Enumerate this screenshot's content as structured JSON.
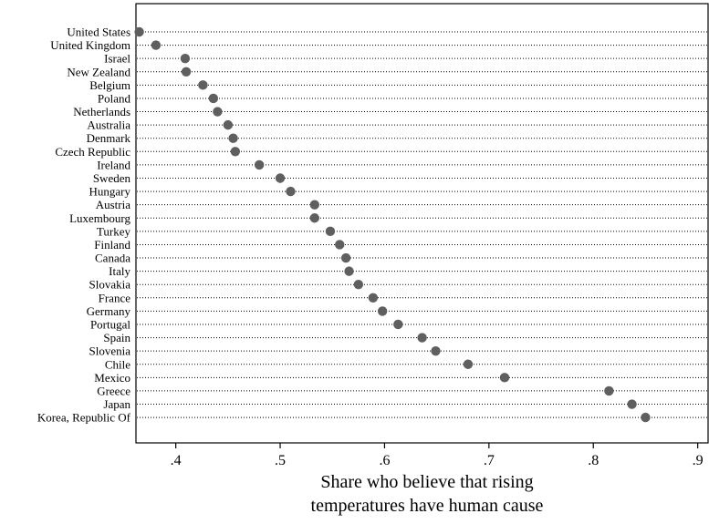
{
  "chart_data": {
    "type": "scatter",
    "title": "",
    "xlabel_lines": [
      "Share who believe that rising",
      "temperatures have human cause"
    ],
    "ylabel": "",
    "xlim": [
      0.365,
      0.905
    ],
    "xticks": [
      0.4,
      0.5,
      0.6,
      0.7,
      0.8,
      0.9
    ],
    "xtick_labels": [
      ".4",
      ".5",
      ".6",
      ".7",
      ".8",
      ".9"
    ],
    "grid": "dotted horizontal lines per category",
    "marker_color": "#5f5f5f",
    "categories": [
      "United States",
      "United Kingdom",
      "Israel",
      "New Zealand",
      "Belgium",
      "Poland",
      "Netherlands",
      "Australia",
      "Denmark",
      "Czech Republic",
      "Ireland",
      "Sweden",
      "Hungary",
      "Austria",
      "Luxembourg",
      "Turkey",
      "Finland",
      "Canada",
      "Italy",
      "Slovakia",
      "France",
      "Germany",
      "Portugal",
      "Spain",
      "Slovenia",
      "Chile",
      "Mexico",
      "Greece",
      "Japan",
      "Korea, Republic Of"
    ],
    "values": [
      0.365,
      0.381,
      0.409,
      0.41,
      0.426,
      0.436,
      0.44,
      0.45,
      0.455,
      0.457,
      0.48,
      0.5,
      0.51,
      0.533,
      0.533,
      0.548,
      0.557,
      0.563,
      0.566,
      0.575,
      0.589,
      0.598,
      0.613,
      0.636,
      0.649,
      0.68,
      0.715,
      0.815,
      0.837,
      0.85
    ]
  }
}
